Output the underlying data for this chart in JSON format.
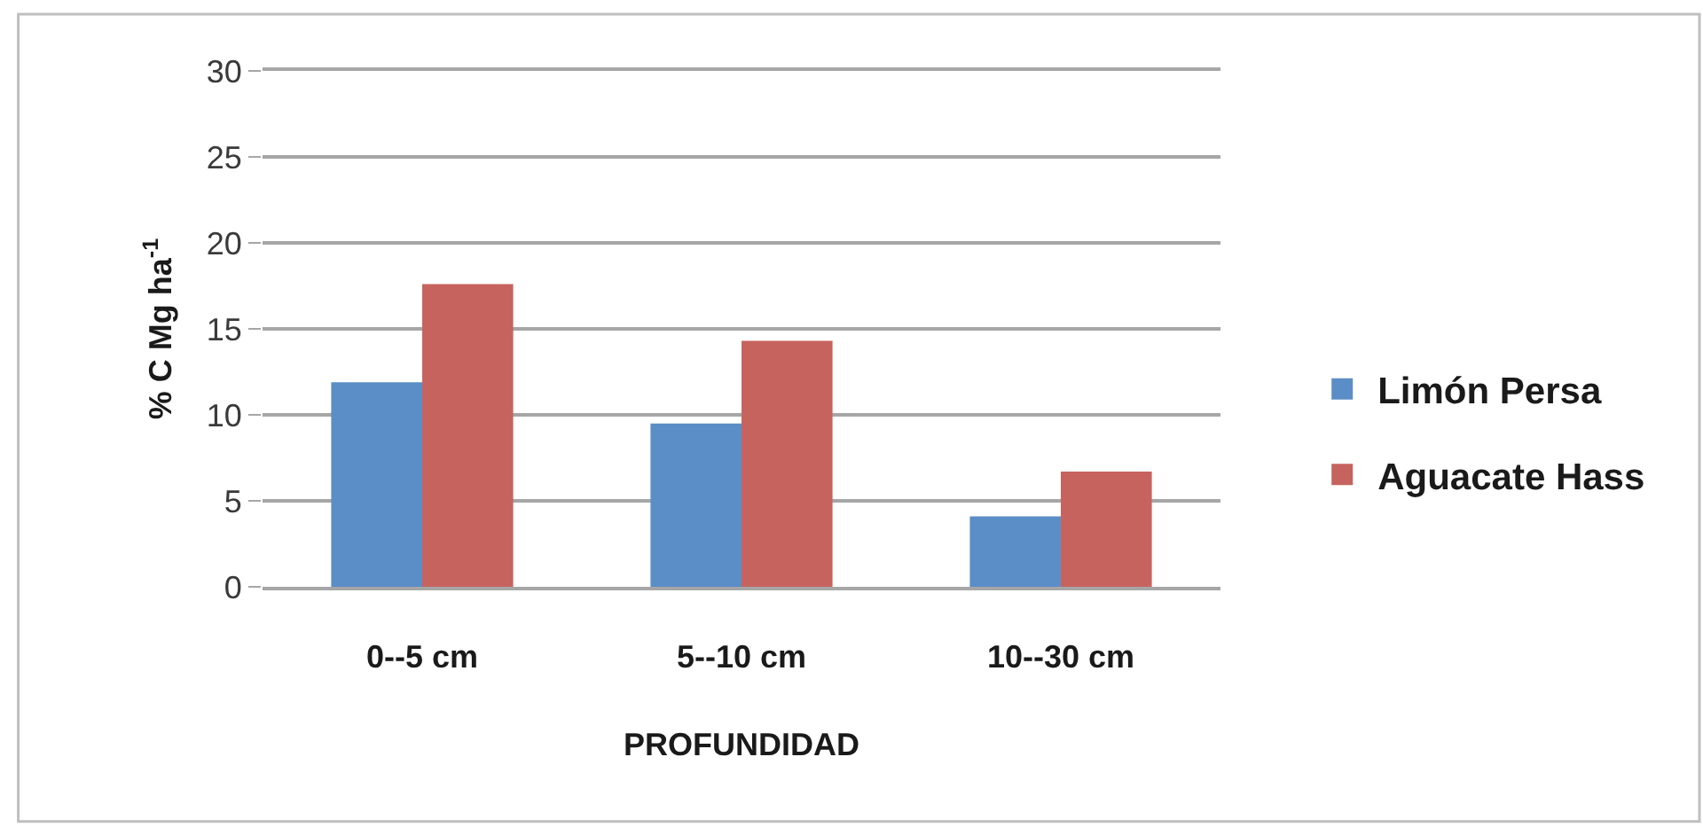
{
  "chart_data": {
    "type": "bar",
    "xlabel": "PROFUNDIDAD",
    "ylabel": "% C Mg ha$^{-1}$",
    "categories": [
      "0--5 cm",
      "5--10 cm",
      "10--30 cm"
    ],
    "series": [
      {
        "name": "Limón Persa",
        "color": "#5b8ec6",
        "values": [
          11.9,
          9.5,
          4.1
        ]
      },
      {
        "name": "Aguacate Hass",
        "color": "#c6635e",
        "values": [
          17.6,
          14.3,
          6.7
        ]
      }
    ],
    "ylim": [
      0,
      30
    ],
    "yticks": [
      0,
      5,
      10,
      15,
      20,
      25,
      30
    ],
    "grid": "y",
    "legend": "right"
  }
}
